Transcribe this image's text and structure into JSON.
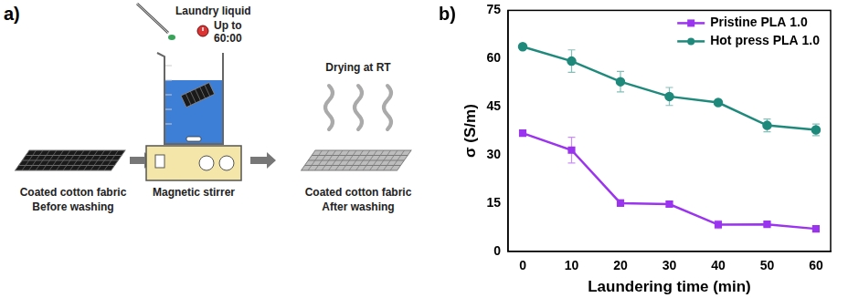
{
  "diagram": {
    "panel": "a)",
    "before": [
      "Coated cotton fabric",
      "Before washing"
    ],
    "reagent": "Laundry liquid",
    "timer": [
      "Up to",
      "60:00"
    ],
    "device": "Magnetic stirrer",
    "drying": "Drying at RT",
    "after": [
      "Coated cotton fabric",
      "After washing"
    ]
  },
  "chart_data": {
    "type": "line",
    "panel": "b)",
    "x_label": "Laundering time (min)",
    "y_label": "σ (S/m)",
    "x": [
      0,
      10,
      20,
      30,
      40,
      50,
      60
    ],
    "series": [
      {
        "name": "Pristine PLA 1.0",
        "color": "#9b34ef",
        "marker": "square",
        "values": [
          36.8,
          31.5,
          15.0,
          14.7,
          8.3,
          8.4,
          7.0
        ],
        "errors": [
          0.8,
          4.0,
          1.0,
          0.8,
          1.2,
          0.6,
          0.5
        ]
      },
      {
        "name": "Hot press PLA 1.0",
        "color": "#1f8a7c",
        "marker": "circle",
        "values": [
          63.7,
          59.2,
          52.8,
          48.2,
          46.3,
          39.2,
          37.8
        ],
        "errors": [
          0.5,
          3.5,
          3.2,
          2.8,
          0.8,
          2.0,
          1.8
        ]
      }
    ],
    "xlim": [
      -3,
      63
    ],
    "xticks": [
      0,
      10,
      20,
      30,
      40,
      50,
      60
    ],
    "ylim": [
      0,
      75
    ],
    "yticks": [
      0,
      15,
      30,
      45,
      60,
      75
    ],
    "grid": false,
    "legend": "upper right"
  }
}
